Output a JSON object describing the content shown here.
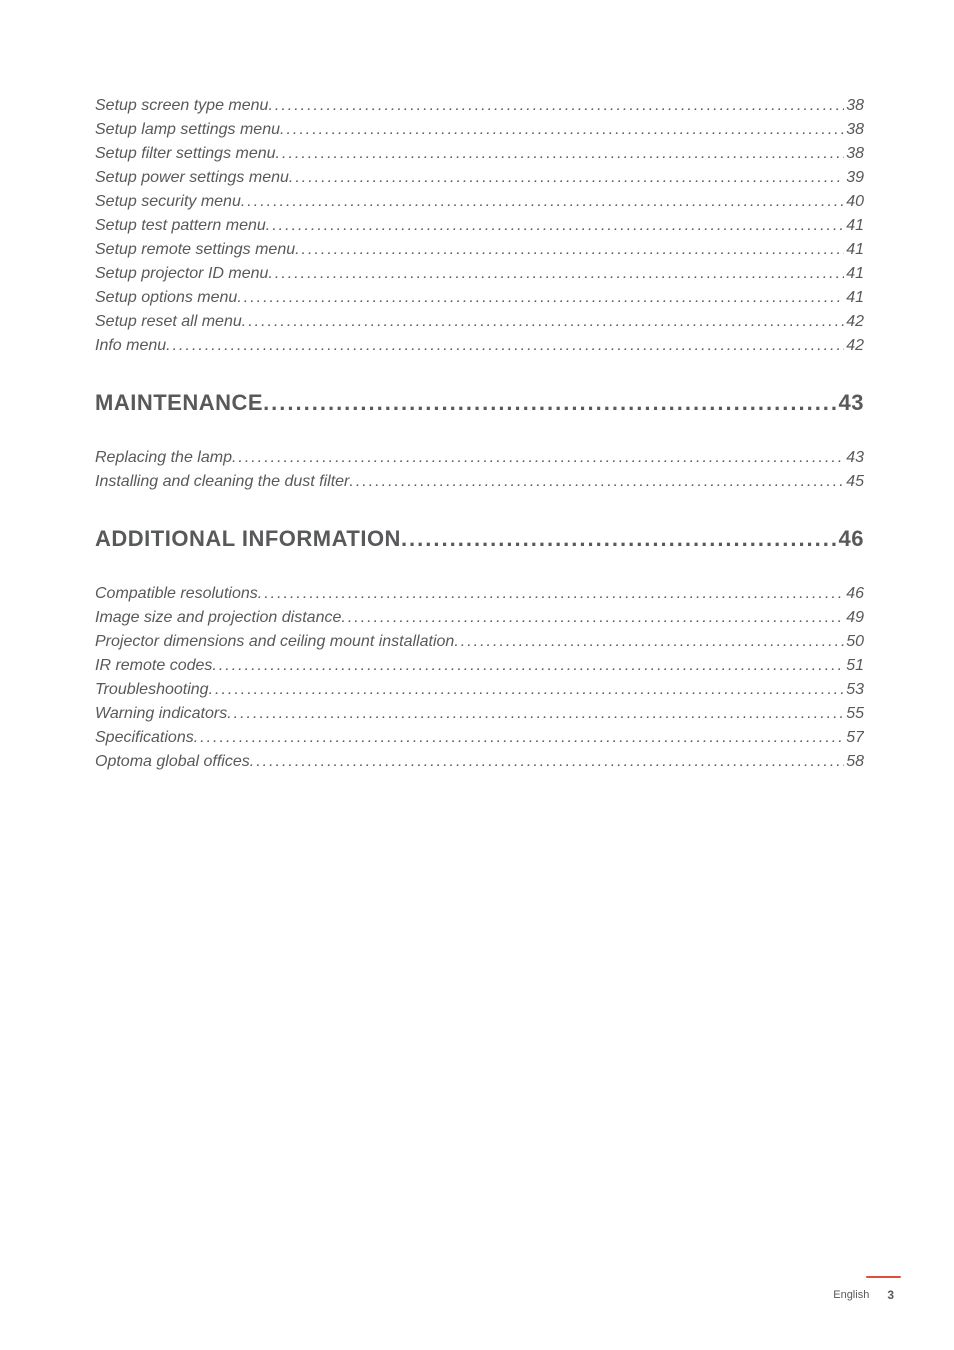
{
  "toc": {
    "sections": [
      {
        "type": "group",
        "items": [
          {
            "title": "Setup screen type menu",
            "page": "38"
          },
          {
            "title": "Setup lamp settings menu",
            "page": "38"
          },
          {
            "title": "Setup filter settings menu",
            "page": "38"
          },
          {
            "title": "Setup power settings menu",
            "page": "39"
          },
          {
            "title": "Setup security menu",
            "page": "40"
          },
          {
            "title": "Setup test pattern menu",
            "page": "41"
          },
          {
            "title": "Setup remote settings menu",
            "page": "41"
          },
          {
            "title": "Setup projector ID menu",
            "page": "41"
          },
          {
            "title": "Setup options menu",
            "page": "41"
          },
          {
            "title": "Setup reset all menu",
            "page": "42"
          },
          {
            "title": "Info menu",
            "page": "42"
          }
        ]
      },
      {
        "type": "heading",
        "title": "MAINTENANCE",
        "page": "43"
      },
      {
        "type": "group",
        "items": [
          {
            "title": "Replacing the lamp",
            "page": "43"
          },
          {
            "title": "Installing and cleaning the dust filter",
            "page": "45"
          }
        ]
      },
      {
        "type": "heading",
        "title": "ADDITIONAL INFORMATION",
        "page": "46"
      },
      {
        "type": "group",
        "items": [
          {
            "title": "Compatible resolutions",
            "page": "46"
          },
          {
            "title": "Image size and projection distance",
            "page": "49"
          },
          {
            "title": "Projector dimensions and ceiling mount installation",
            "page": "50"
          },
          {
            "title": "IR remote codes",
            "page": "51"
          },
          {
            "title": "Troubleshooting",
            "page": "53"
          },
          {
            "title": "Warning indicators",
            "page": "55"
          },
          {
            "title": "Specifications",
            "page": "57"
          },
          {
            "title": "Optoma global offices",
            "page": "58"
          }
        ]
      }
    ]
  },
  "footer": {
    "language": "English",
    "page_number": "3"
  },
  "dots": "..................................................................................................................................................................................................................",
  "colors": {
    "text": "#58595b",
    "accent": "#e04e39",
    "background": "#ffffff"
  },
  "typography": {
    "subsection_fontsize": 16,
    "heading_fontsize": 22,
    "footer_lang_fontsize": 11,
    "footer_page_fontsize": 12
  }
}
